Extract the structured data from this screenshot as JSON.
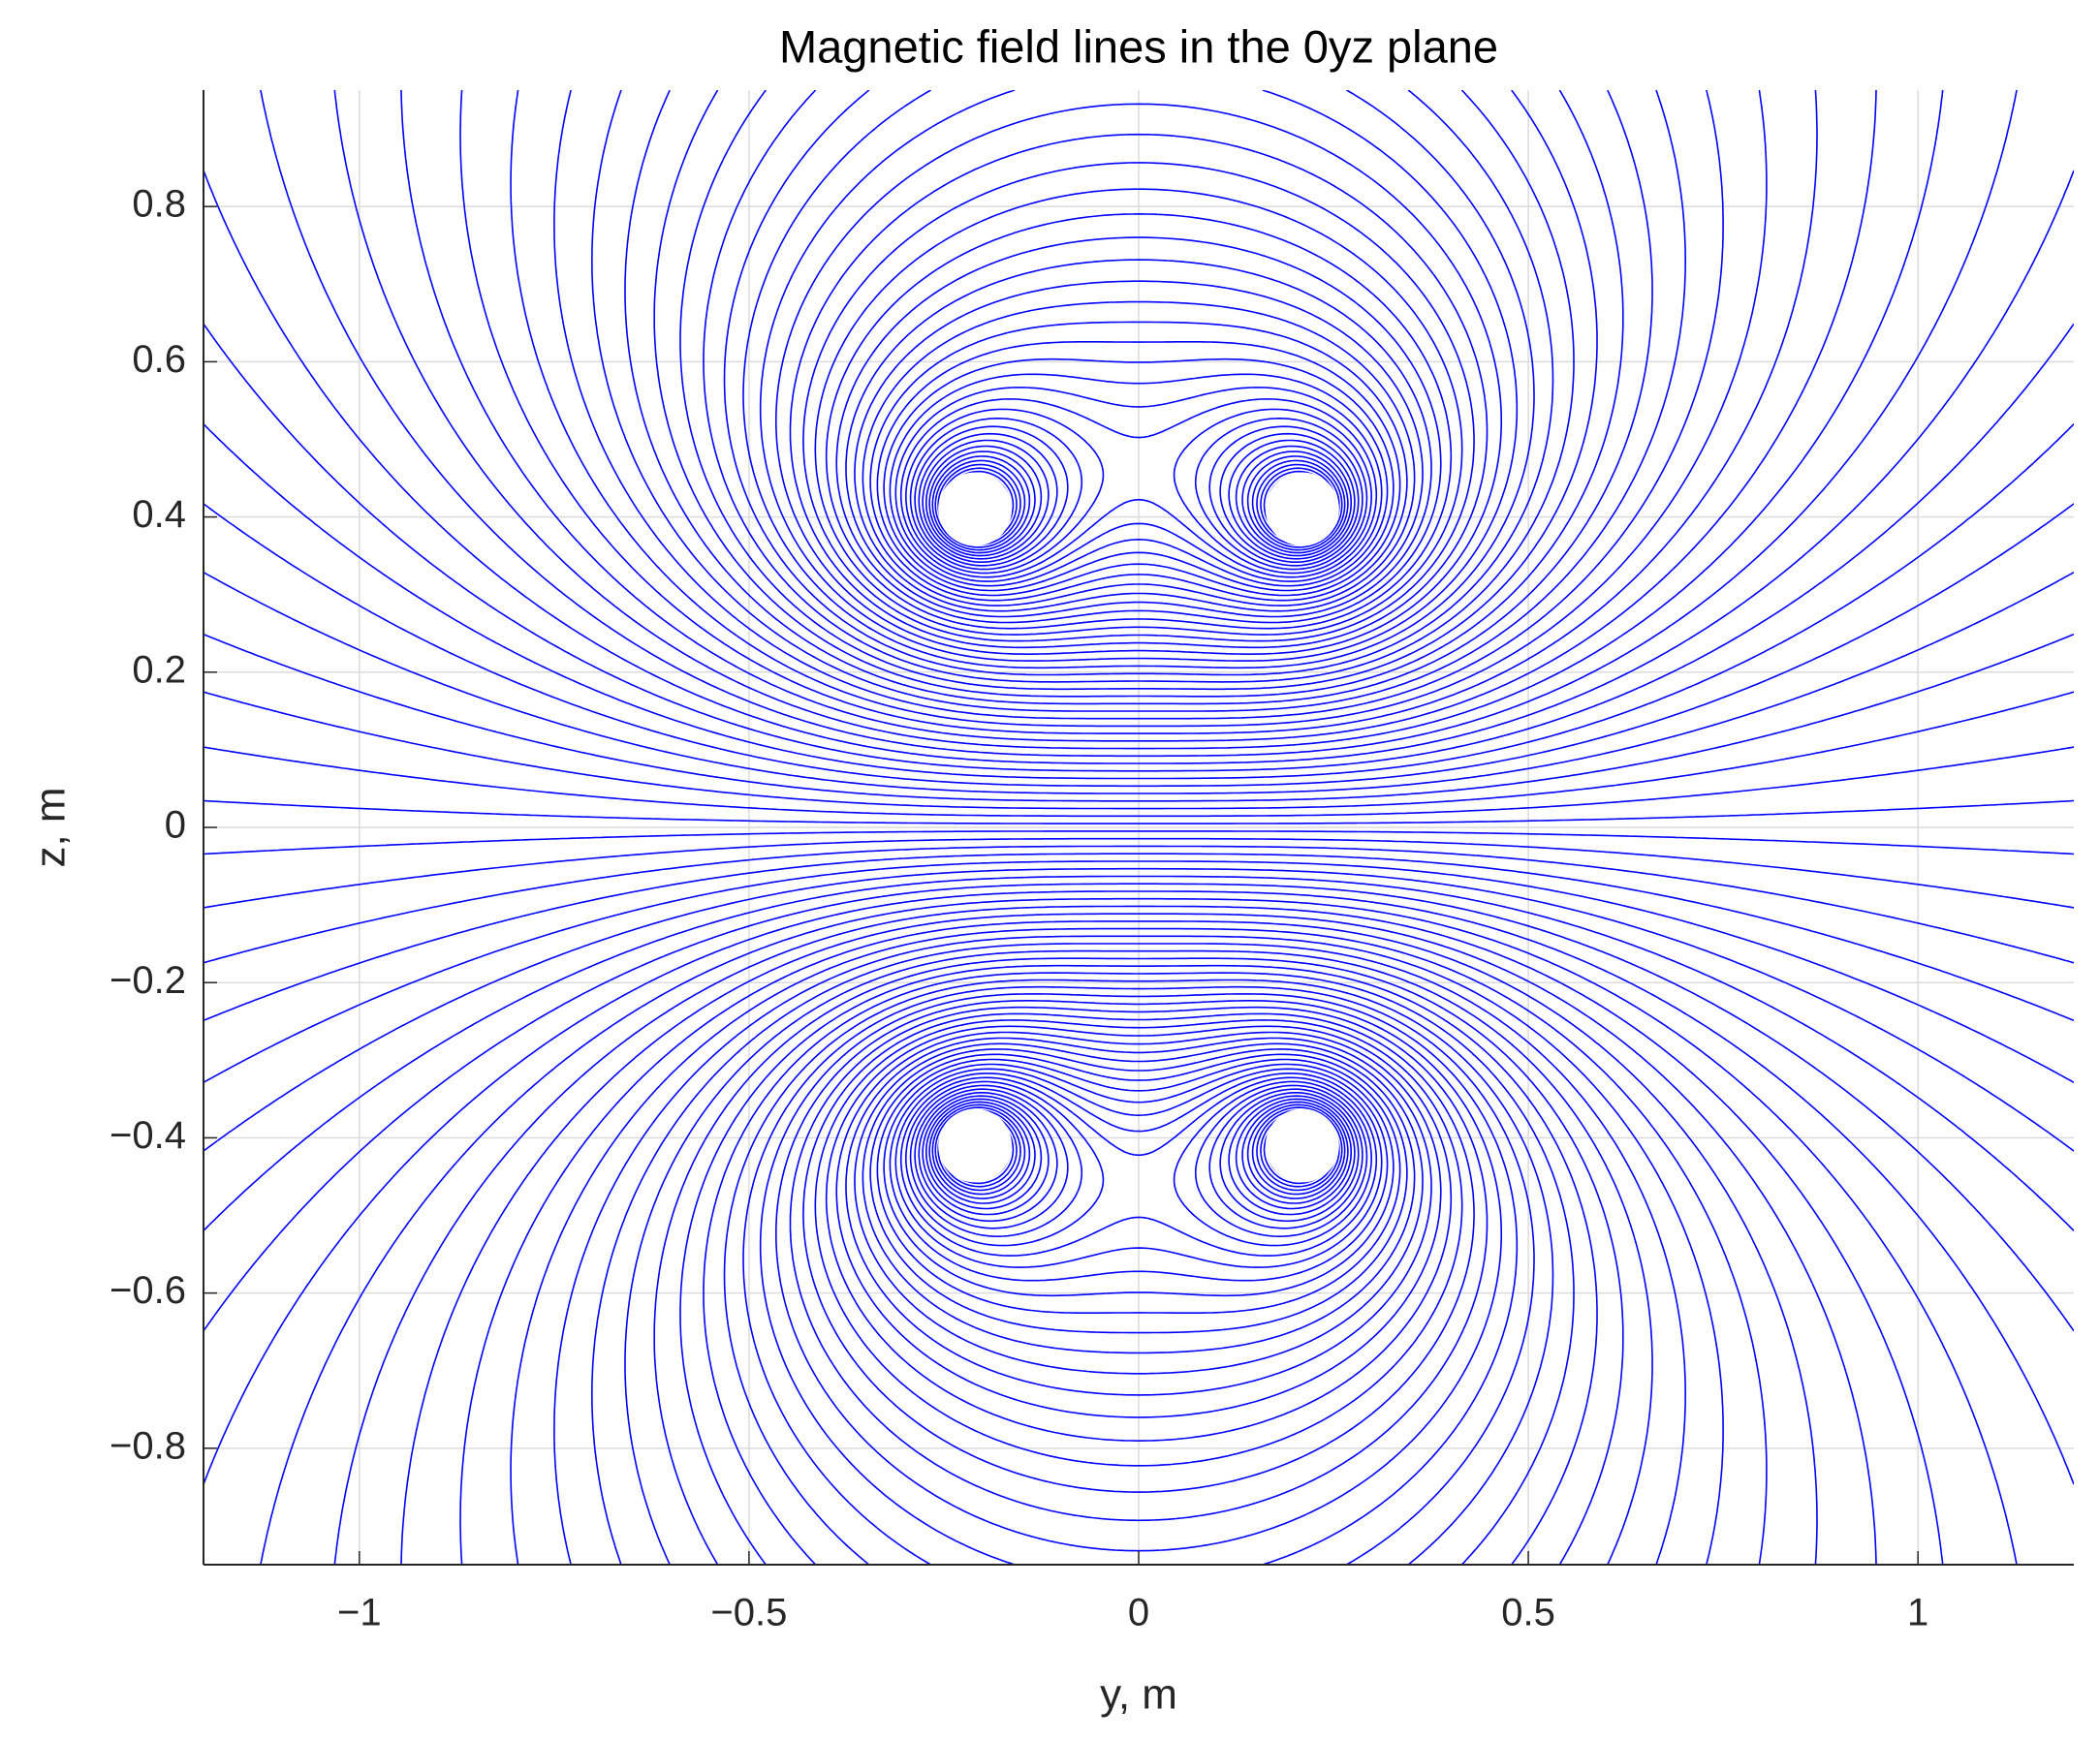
{
  "chart_data": {
    "type": "field_lines",
    "title": "Magnetic field lines in the 0yz plane",
    "x_label": "y, m",
    "y_label": "z, m",
    "coils": {
      "y": [
        -0.21,
        0.21,
        -0.21,
        0.21
      ],
      "z": [
        0.41,
        0.41,
        -0.41,
        -0.41
      ]
    },
    "color": "#0000ff",
    "xlim": [
      -1.2,
      1.2
    ],
    "xticks": [
      {
        "value": -1,
        "label": "−1"
      },
      {
        "value": -0.5,
        "label": "−0.5"
      },
      0,
      0.5,
      1
    ],
    "ylim": [
      -0.95,
      0.95
    ],
    "yticks": [
      {
        "value": -0.8,
        "label": "−0.8"
      },
      {
        "value": -0.6,
        "label": "−0.6"
      },
      {
        "value": -0.4,
        "label": "−0.4"
      },
      {
        "value": -0.2,
        "label": "−0.2"
      },
      0,
      0.2,
      0.4,
      0.6,
      0.8
    ],
    "grid": true
  }
}
